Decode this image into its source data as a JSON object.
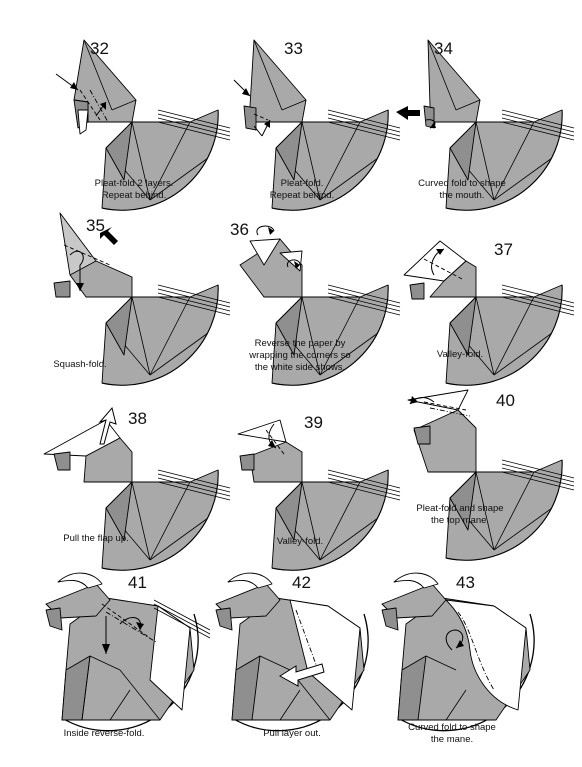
{
  "steps": [
    {
      "number": "32",
      "caption": [
        "Pleat-fold 2 layers.",
        "Repeat behind."
      ]
    },
    {
      "number": "33",
      "caption": [
        "Pleat-fold.",
        "Repeat behind."
      ]
    },
    {
      "number": "34",
      "caption": [
        "Curved fold to shape",
        "the mouth."
      ]
    },
    {
      "number": "35",
      "caption": [
        "Squash-fold."
      ]
    },
    {
      "number": "36",
      "caption": [
        "Reverse the paper by",
        "wrapping the corners so",
        "the white side shows."
      ]
    },
    {
      "number": "37",
      "caption": [
        "Valley-fold."
      ]
    },
    {
      "number": "38",
      "caption": [
        "Pull the flap up."
      ]
    },
    {
      "number": "39",
      "caption": [
        "Valley-fold."
      ]
    },
    {
      "number": "40",
      "caption": [
        "Pleat-fold and shape",
        "the top mane."
      ]
    },
    {
      "number": "41",
      "caption": [
        "Inside reverse-fold."
      ]
    },
    {
      "number": "42",
      "caption": [
        "Pull layer out."
      ]
    },
    {
      "number": "43",
      "caption": [
        "Curved fold to shape",
        "the mane."
      ]
    }
  ],
  "colors": {
    "paper_colored": "#a9a9a9",
    "paper_dark": "#8f8f8f",
    "paper_white": "#ffffff",
    "line": "#000000"
  }
}
